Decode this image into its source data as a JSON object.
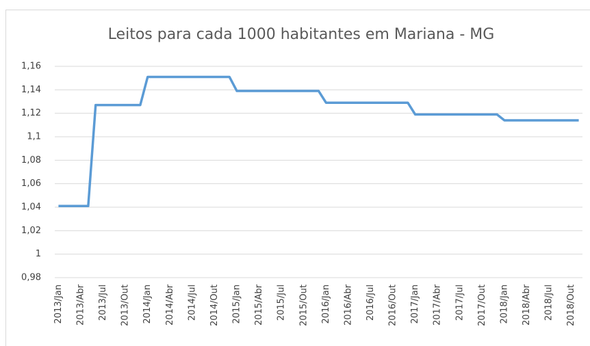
{
  "chart_data": {
    "type": "line",
    "title": "Leitos para cada 1000 habitantes em Mariana - MG",
    "categories": [
      "2013/Jan",
      null,
      null,
      "2013/Abr",
      null,
      null,
      "2013/Jul",
      null,
      null,
      "2013/Out",
      null,
      null,
      "2014/Jan",
      null,
      null,
      "2014/Abr",
      null,
      null,
      "2014/Jul",
      null,
      null,
      "2014/Out",
      null,
      null,
      "2015/Jan",
      null,
      null,
      "2015/Abr",
      null,
      null,
      "2015/Jul",
      null,
      null,
      "2015/Out",
      null,
      null,
      "2016/Jan",
      null,
      null,
      "2016/Abr",
      null,
      null,
      "2016/Jul",
      null,
      null,
      "2016/Out",
      null,
      null,
      "2017/Jan",
      null,
      null,
      "2017/Abr",
      null,
      null,
      "2017/Jul",
      null,
      null,
      "2017/Out",
      null,
      null,
      "2018/Jan",
      null,
      null,
      "2018/Abr",
      null,
      null,
      "2018/Jul",
      null,
      null,
      "2018/Out",
      null
    ],
    "series": [
      {
        "name": "Leitos",
        "color": "#5b9bd5",
        "values": [
          1.041,
          1.041,
          1.041,
          1.041,
          1.041,
          1.127,
          1.127,
          1.127,
          1.127,
          1.127,
          1.127,
          1.127,
          1.151,
          1.151,
          1.151,
          1.151,
          1.151,
          1.151,
          1.151,
          1.151,
          1.151,
          1.151,
          1.151,
          1.151,
          1.139,
          1.139,
          1.139,
          1.139,
          1.139,
          1.139,
          1.139,
          1.139,
          1.139,
          1.139,
          1.139,
          1.139,
          1.129,
          1.129,
          1.129,
          1.129,
          1.129,
          1.129,
          1.129,
          1.129,
          1.129,
          1.129,
          1.129,
          1.129,
          1.119,
          1.119,
          1.119,
          1.119,
          1.119,
          1.119,
          1.119,
          1.119,
          1.119,
          1.119,
          1.119,
          1.119,
          1.114,
          1.114,
          1.114,
          1.114,
          1.114,
          1.114,
          1.114,
          1.114,
          1.114,
          1.114,
          1.114
        ]
      }
    ],
    "ylim": [
      0.98,
      1.16
    ],
    "yticks": [
      {
        "value": 0.98,
        "label": "0,98"
      },
      1,
      {
        "value": 1.02,
        "label": "1,02"
      },
      {
        "value": 1.04,
        "label": "1,04"
      },
      {
        "value": 1.06,
        "label": "1,06"
      },
      {
        "value": 1.08,
        "label": "1,08"
      },
      {
        "value": 1.1,
        "label": "1,1"
      },
      {
        "value": 1.12,
        "label": "1,12"
      },
      {
        "value": 1.14,
        "label": "1,14"
      },
      {
        "value": 1.16,
        "label": "1,16"
      }
    ],
    "grid": true
  }
}
